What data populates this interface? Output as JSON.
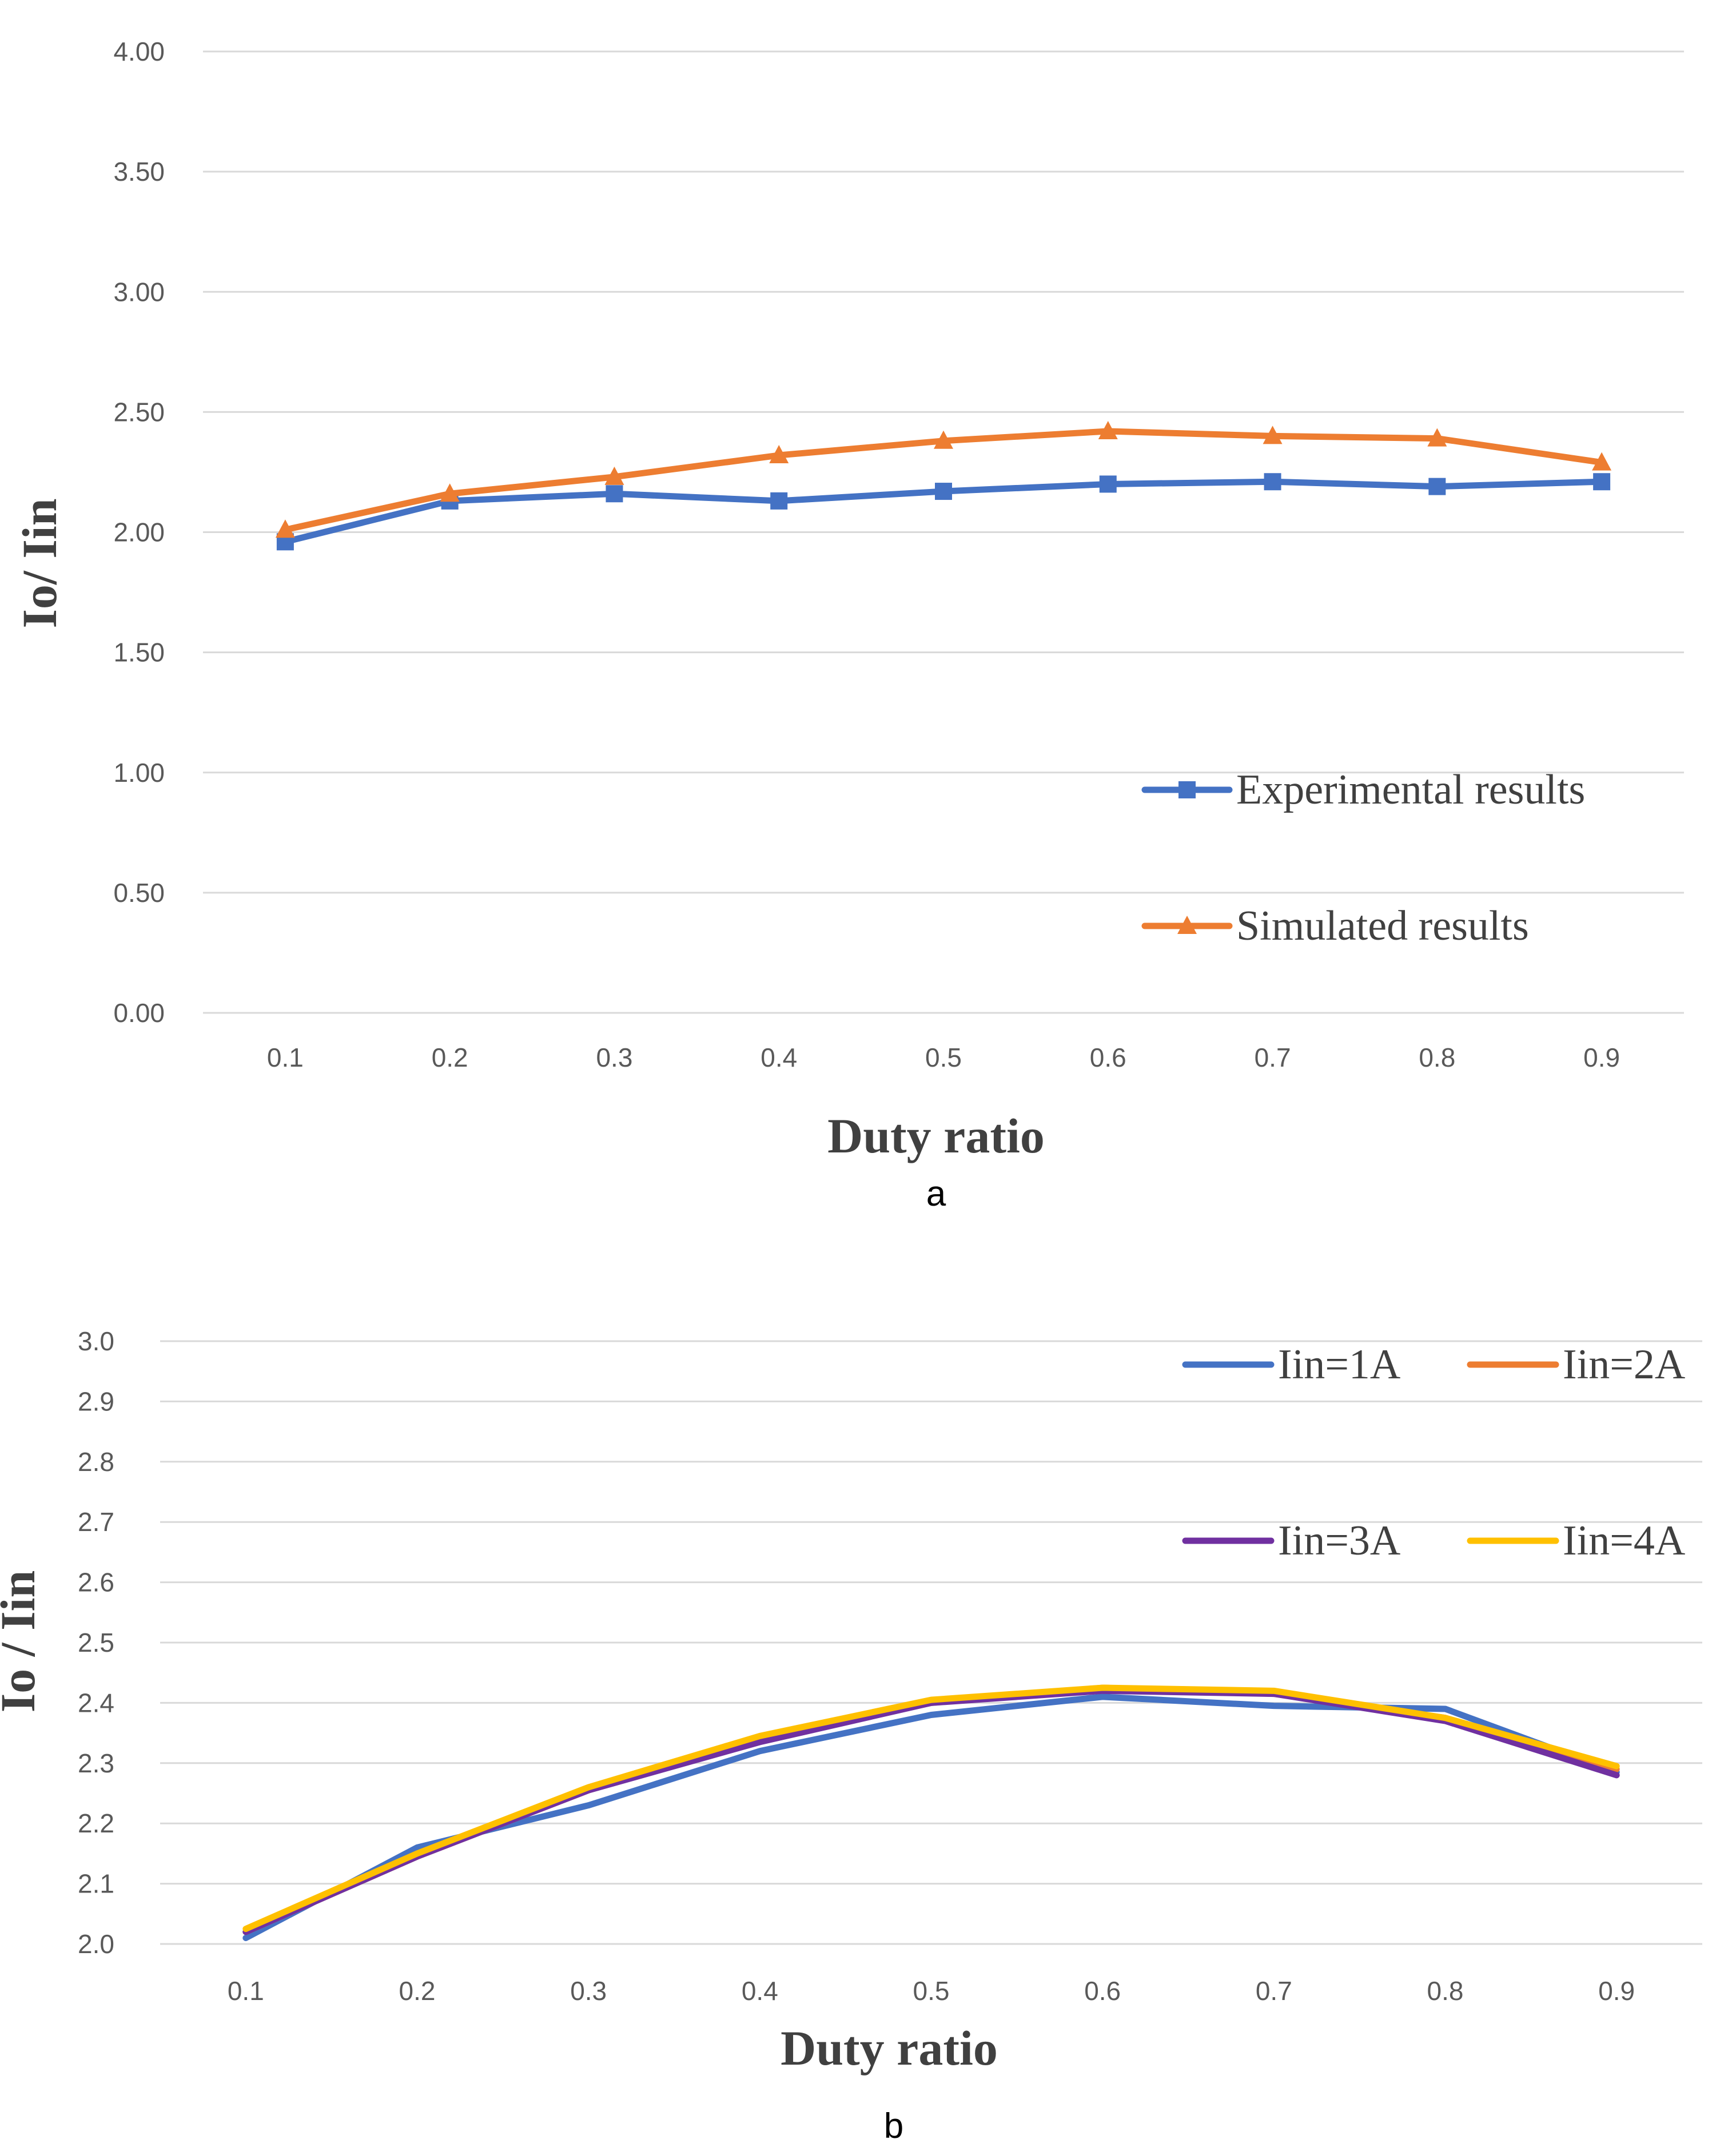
{
  "figure": {
    "captions": [
      "a",
      "b"
    ]
  },
  "chart_data": [
    {
      "id": "a",
      "type": "line",
      "categories": [
        "0.1",
        "0.2",
        "0.3",
        "0.4",
        "0.5",
        "0.6",
        "0.7",
        "0.8",
        "0.9"
      ],
      "yticks": [
        "0.00",
        "0.50",
        "1.00",
        "1.50",
        "2.00",
        "2.50",
        "3.00",
        "3.50",
        "4.00"
      ],
      "ylim": [
        0,
        4
      ],
      "xlabel": "Duty ratio",
      "ylabel": "Io/ Iin",
      "grid": true,
      "legend_position": "lower-right",
      "series": [
        {
          "name": "Experimental results",
          "color": "#4472c4",
          "marker": "square",
          "values": [
            1.96,
            2.13,
            2.16,
            2.13,
            2.17,
            2.2,
            2.21,
            2.19,
            2.21
          ]
        },
        {
          "name": "Simulated results",
          "color": "#ed7d31",
          "marker": "triangle",
          "values": [
            2.01,
            2.16,
            2.23,
            2.32,
            2.38,
            2.42,
            2.4,
            2.39,
            2.29
          ]
        }
      ]
    },
    {
      "id": "b",
      "type": "line",
      "categories": [
        "0.1",
        "0.2",
        "0.3",
        "0.4",
        "0.5",
        "0.6",
        "0.7",
        "0.8",
        "0.9"
      ],
      "yticks": [
        "2.0",
        "2.1",
        "2.2",
        "2.3",
        "2.4",
        "2.5",
        "2.6",
        "2.7",
        "2.8",
        "2.9",
        "3.0"
      ],
      "ylim": [
        2.0,
        3.0
      ],
      "xlabel": "Duty ratio",
      "ylabel": "Io / Iin",
      "grid": true,
      "legend_position": "top-right",
      "series": [
        {
          "name": "Iin=1A",
          "color": "#4472c4",
          "values": [
            2.01,
            2.16,
            2.23,
            2.32,
            2.38,
            2.41,
            2.395,
            2.39,
            2.285
          ]
        },
        {
          "name": "Iin=2A",
          "color": "#ed7d31",
          "values": [
            2.02,
            2.145,
            2.255,
            2.34,
            2.4,
            2.425,
            2.415,
            2.375,
            2.29
          ]
        },
        {
          "name": "Iin=3A",
          "color": "#7030a0",
          "values": [
            2.02,
            2.145,
            2.255,
            2.335,
            2.4,
            2.42,
            2.415,
            2.37,
            2.28
          ]
        },
        {
          "name": "Iin=4A",
          "color": "#ffc000",
          "values": [
            2.025,
            2.15,
            2.26,
            2.345,
            2.405,
            2.425,
            2.42,
            2.375,
            2.295
          ]
        }
      ]
    }
  ]
}
